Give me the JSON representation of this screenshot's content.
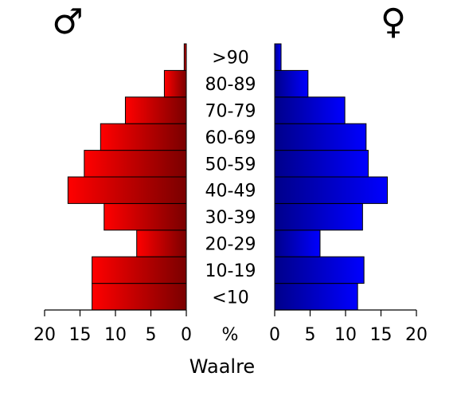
{
  "chart_data": {
    "type": "bar",
    "orientation": "horizontal",
    "layout": "population-pyramid",
    "categories": [
      "<10",
      "10-19",
      "20-29",
      "30-39",
      "40-49",
      "50-59",
      "60-69",
      "70-79",
      "80-89",
      ">90"
    ],
    "series": [
      {
        "symbol": "♂",
        "side": "left",
        "color_start": "#ff0000",
        "color_end": "#7a0000",
        "values": [
          13.3,
          13.3,
          7.0,
          11.6,
          16.7,
          14.4,
          12.1,
          8.6,
          3.1,
          0.3
        ]
      },
      {
        "symbol": "♀",
        "side": "right",
        "color_start": "#00008a",
        "color_end": "#0000ff",
        "values": [
          11.7,
          12.6,
          6.4,
          12.4,
          15.9,
          13.2,
          12.9,
          9.9,
          4.7,
          0.9
        ]
      }
    ],
    "xlabel": "Waalre",
    "center_axis_label": "%",
    "xlim": [
      0,
      20
    ],
    "xticks": [
      20,
      15,
      10,
      5,
      0
    ],
    "grid": false,
    "legend": "none"
  }
}
